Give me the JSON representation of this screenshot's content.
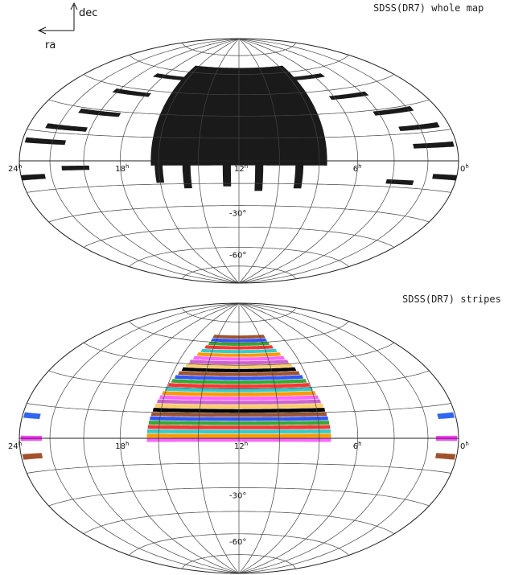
{
  "compass": {
    "ra_label": "ra",
    "dec_label": "dec"
  },
  "panels": [
    {
      "id": "whole",
      "title": "SDSS(DR7) whole map",
      "style": "black",
      "ra_ticks": [
        {
          "ra": 24,
          "label": "24"
        },
        {
          "ra": 18,
          "label": "18"
        },
        {
          "ra": 12,
          "label": "12"
        },
        {
          "ra": 6,
          "label": "6"
        },
        {
          "ra": 0,
          "label": "0"
        }
      ],
      "hour_suffix": "h",
      "dec_ticks": [
        {
          "dec": -30,
          "label": "-30°"
        },
        {
          "dec": -60,
          "label": "-60°"
        }
      ],
      "colors": {
        "coverage": "#1a1a1a"
      }
    },
    {
      "id": "stripes",
      "title": "SDSS(DR7) stripes",
      "style": "color",
      "ra_ticks": [
        {
          "ra": 24,
          "label": "24"
        },
        {
          "ra": 18,
          "label": "18"
        },
        {
          "ra": 12,
          "label": "12"
        },
        {
          "ra": 6,
          "label": "6"
        },
        {
          "ra": 0,
          "label": "0"
        }
      ],
      "hour_suffix": "h",
      "dec_ticks": [
        {
          "dec": -30,
          "label": "-30°"
        },
        {
          "dec": -60,
          "label": "-60°"
        }
      ],
      "colors": {
        "stripes": [
          "#ff66ff",
          "#ff9900",
          "#33cccc",
          "#ff3333",
          "#33aa33",
          "#3355ff",
          "#a0522d",
          "#000000",
          "#ffcc66",
          "#cc66cc"
        ],
        "south_blue": "#3366ee",
        "south_magenta": "#ff44ff",
        "south_brown": "#a0522d"
      }
    }
  ]
}
